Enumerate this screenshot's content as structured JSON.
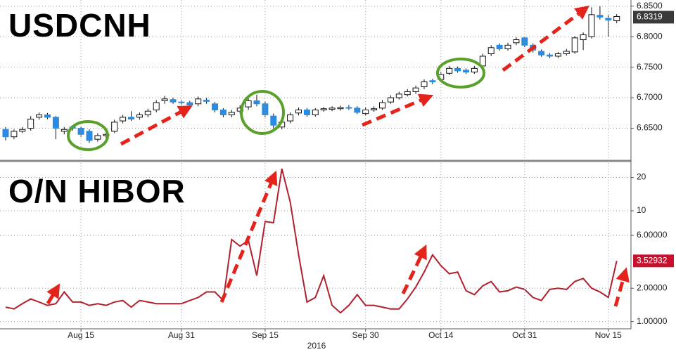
{
  "chart_data": [
    {
      "type": "candlestick",
      "title": "USDCNH",
      "open": [
        6.648,
        6.636,
        6.645,
        6.65,
        6.668,
        6.672,
        6.668,
        6.645,
        6.652,
        6.65,
        6.645,
        6.632,
        6.638,
        6.645,
        6.662,
        6.668,
        6.668,
        6.672,
        6.68,
        6.695,
        6.697,
        6.693,
        6.692,
        6.69,
        6.696,
        6.69,
        6.68,
        6.672,
        6.678,
        6.685,
        6.695,
        6.69,
        6.67,
        6.652,
        6.662,
        6.675,
        6.68,
        6.672,
        6.68,
        6.681,
        6.682,
        6.684,
        6.683,
        6.674,
        6.68,
        6.683,
        6.693,
        6.7,
        6.705,
        6.71,
        6.718,
        6.728,
        6.73,
        6.74,
        6.748,
        6.745,
        6.742,
        6.752,
        6.772,
        6.786,
        6.78,
        6.79,
        6.798,
        6.786,
        6.776,
        6.77,
        6.768,
        6.772,
        6.775,
        6.795,
        6.8,
        6.835,
        6.83,
        6.826
      ],
      "high": [
        6.652,
        6.648,
        6.652,
        6.67,
        6.676,
        6.675,
        6.67,
        6.652,
        6.655,
        6.653,
        6.648,
        6.642,
        6.644,
        6.664,
        6.672,
        6.678,
        6.676,
        6.682,
        6.696,
        6.703,
        6.7,
        6.696,
        6.695,
        6.702,
        6.7,
        6.693,
        6.683,
        6.68,
        6.688,
        6.7,
        6.705,
        6.694,
        6.674,
        6.664,
        6.676,
        6.684,
        6.683,
        6.683,
        6.685,
        6.686,
        6.687,
        6.688,
        6.686,
        6.684,
        6.686,
        6.696,
        6.704,
        6.71,
        6.714,
        6.72,
        6.73,
        6.731,
        6.742,
        6.752,
        6.751,
        6.748,
        6.752,
        6.772,
        6.786,
        6.789,
        6.79,
        6.799,
        6.8,
        6.789,
        6.779,
        6.773,
        6.775,
        6.78,
        6.801,
        6.807,
        6.848,
        6.85,
        6.835,
        6.837
      ],
      "low": [
        6.63,
        6.632,
        6.642,
        6.646,
        6.664,
        6.665,
        6.632,
        6.64,
        6.646,
        6.636,
        6.626,
        6.628,
        6.634,
        6.642,
        6.658,
        6.662,
        6.664,
        6.668,
        6.676,
        6.69,
        6.69,
        6.688,
        6.685,
        6.686,
        6.69,
        6.676,
        6.668,
        6.668,
        6.674,
        6.68,
        6.686,
        6.668,
        6.65,
        6.648,
        6.658,
        6.671,
        6.669,
        6.669,
        6.677,
        6.678,
        6.679,
        6.68,
        6.673,
        6.671,
        6.677,
        6.68,
        6.69,
        6.697,
        6.702,
        6.706,
        6.714,
        6.722,
        6.727,
        6.737,
        6.741,
        6.739,
        6.739,
        6.748,
        6.768,
        6.777,
        6.777,
        6.786,
        6.783,
        6.774,
        6.767,
        6.765,
        6.765,
        6.769,
        6.772,
        6.778,
        6.797,
        6.828,
        6.8,
        6.822
      ],
      "close": [
        6.636,
        6.645,
        6.648,
        6.665,
        6.672,
        6.668,
        6.65,
        6.648,
        6.65,
        6.64,
        6.63,
        6.638,
        6.64,
        6.66,
        6.668,
        6.665,
        6.672,
        6.678,
        6.692,
        6.698,
        6.693,
        6.692,
        6.688,
        6.698,
        6.694,
        6.68,
        6.672,
        6.676,
        6.683,
        6.695,
        6.69,
        6.672,
        6.655,
        6.66,
        6.672,
        6.68,
        6.672,
        6.68,
        6.682,
        6.683,
        6.684,
        6.683,
        6.676,
        6.68,
        6.682,
        6.692,
        6.7,
        6.706,
        6.71,
        6.716,
        6.726,
        6.726,
        6.738,
        6.748,
        6.744,
        6.742,
        6.748,
        6.768,
        6.782,
        6.78,
        6.786,
        6.795,
        6.786,
        6.778,
        6.77,
        6.768,
        6.772,
        6.776,
        6.798,
        6.803,
        6.836,
        6.832,
        6.827,
        6.833
      ],
      "up_color": "#ffffff",
      "down_color": "#2b8be0",
      "ylim": [
        6.6,
        6.86
      ],
      "yticks": [
        {
          "value": 6.65,
          "label": "6.6500"
        },
        {
          "value": 6.7,
          "label": "6.7000"
        },
        {
          "value": 6.75,
          "label": "6.7500"
        },
        {
          "value": 6.8,
          "label": "6.8000"
        },
        {
          "value": 6.85,
          "label": "6.8500"
        }
      ],
      "grid": true,
      "last_value": 6.8319,
      "last_color": "#3a3a3a"
    },
    {
      "type": "line",
      "title": "O/N HIBOR",
      "categories": [
        null,
        null,
        null,
        null,
        null,
        null,
        null,
        null,
        null,
        "Aug 15",
        null,
        null,
        null,
        null,
        null,
        null,
        null,
        null,
        null,
        null,
        null,
        "Aug 31",
        null,
        null,
        null,
        null,
        null,
        null,
        null,
        null,
        null,
        "Sep 15",
        null,
        null,
        null,
        null,
        null,
        null,
        null,
        null,
        null,
        null,
        null,
        "Sep 30",
        null,
        null,
        null,
        null,
        null,
        null,
        null,
        null,
        "Oct 14",
        null,
        null,
        null,
        null,
        null,
        null,
        null,
        null,
        null,
        "Oct 31",
        null,
        null,
        null,
        null,
        null,
        null,
        null,
        null,
        null,
        "Nov 15",
        null
      ],
      "year": "2016",
      "values": [
        1.35,
        1.3,
        1.45,
        1.6,
        1.5,
        1.4,
        1.45,
        1.85,
        1.5,
        1.5,
        1.4,
        1.45,
        1.4,
        1.5,
        1.55,
        1.35,
        1.55,
        1.5,
        1.45,
        1.45,
        1.45,
        1.45,
        1.55,
        1.65,
        1.85,
        1.85,
        1.55,
        5.5,
        4.8,
        5.4,
        2.6,
        8,
        7.8,
        24,
        12,
        4,
        1.5,
        1.65,
        2.6,
        1.4,
        1.2,
        1.4,
        1.75,
        1.4,
        1.4,
        1.35,
        1.3,
        1.3,
        1.6,
        2.05,
        2.8,
        4.0,
        3.2,
        2.7,
        2.8,
        1.9,
        1.75,
        2.1,
        2.3,
        1.85,
        1.9,
        2.05,
        1.95,
        1.65,
        1.55,
        1.95,
        2.0,
        1.95,
        2.3,
        2.45,
        2.0,
        1.85,
        1.65,
        3.52932
      ],
      "color": "#b0202e",
      "ylog": true,
      "ylim": [
        0.86,
        27
      ],
      "yticks": [
        {
          "value": 1,
          "label": "1.00000"
        },
        {
          "value": 2,
          "label": "2.00000"
        },
        {
          "value": 6,
          "label": "6.00000"
        },
        10,
        20
      ],
      "grid": true,
      "last_value": 3.52932,
      "last_color": "#c8102e"
    }
  ]
}
